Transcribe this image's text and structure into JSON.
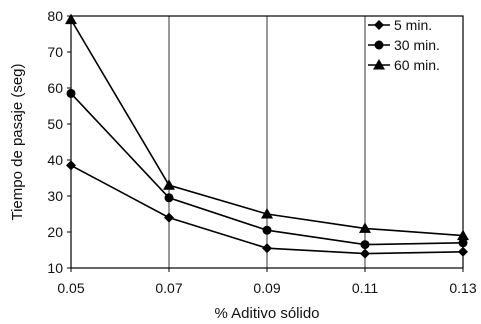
{
  "chart_data": {
    "type": "line",
    "title": "",
    "xlabel": "% Aditivo sólido",
    "ylabel": "Tiempo de pasaje (seg)",
    "x": [
      0.05,
      0.07,
      0.09,
      0.11,
      0.13
    ],
    "x_tick_labels": [
      "0.05",
      "0.07",
      "0.09",
      "0.11",
      "0.13"
    ],
    "xlim": [
      0.05,
      0.13
    ],
    "ylim": [
      10,
      80
    ],
    "y_ticks": [
      10,
      20,
      30,
      40,
      50,
      60,
      70,
      80
    ],
    "grid": "vertical",
    "legend_position": "top-right",
    "series": [
      {
        "name": "5 min.",
        "marker": "diamond",
        "values": [
          38.5,
          24,
          15.5,
          14,
          14.5
        ]
      },
      {
        "name": "30 min.",
        "marker": "circle",
        "values": [
          58.5,
          29.5,
          20.5,
          16.5,
          17
        ]
      },
      {
        "name": "60 min.",
        "marker": "triangle",
        "values": [
          79,
          33,
          25,
          21,
          19
        ]
      }
    ],
    "colors": {
      "line": "#000000",
      "grid": "#000000",
      "background": "#ffffff"
    }
  }
}
